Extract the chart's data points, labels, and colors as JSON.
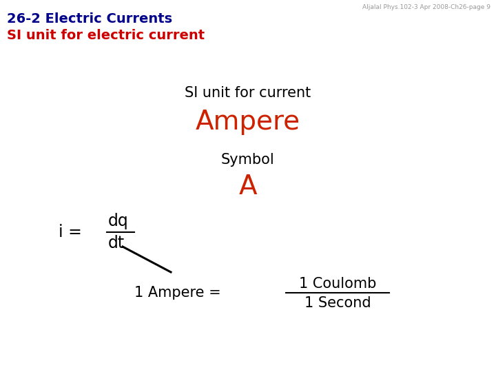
{
  "bg_color": "#ffffff",
  "header_line1": "26-2 Electric Currents",
  "header_line2": "SI unit for electric current",
  "header_color": "#00008B",
  "header_line2_color": "#cc0000",
  "watermark": "Aljalal Phys.102-3 Apr 2008-Ch26-page 9",
  "watermark_color": "#999999",
  "si_unit_label": "SI unit for current",
  "si_unit_color": "#000000",
  "ampere_text": "Ampere",
  "ampere_color": "#cc2200",
  "symbol_label": "Symbol",
  "symbol_color": "#000000",
  "A_text": "A",
  "A_color": "#cc2200",
  "coulomb_text": "1 Coulomb",
  "second_text": "1 Second"
}
